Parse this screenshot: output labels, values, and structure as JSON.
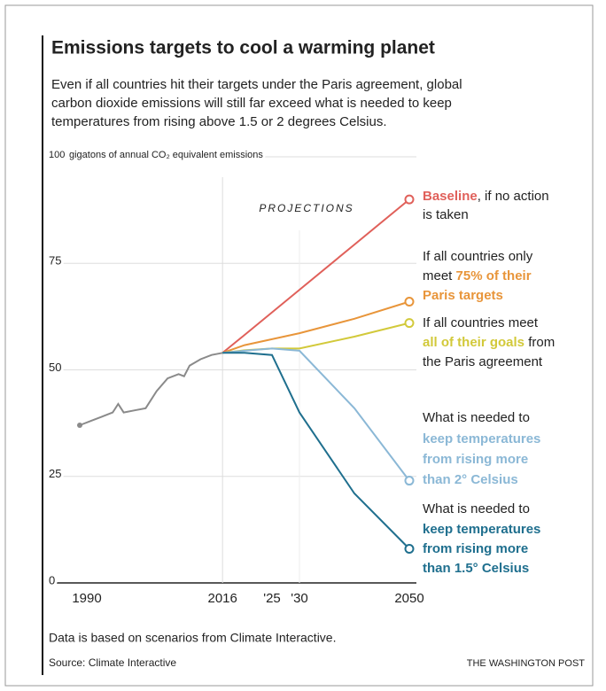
{
  "chart_data": {
    "type": "line",
    "title": "Emissions targets to cool a warming planet",
    "subtitle": [
      "Even if all countries hit their targets under the Paris agreement, global",
      "carbon dioxide emissions will still far exceed what is needed to keep",
      "temperatures from rising above 1.5 or 2 degrees Celsius."
    ],
    "y_axis_label": "gigatons of annual CO₂ equivalent emissions",
    "projection_label": "PROJECTIONS",
    "note": "Data is based on scenarios from Climate Interactive.",
    "source": "Source: Climate Interactive",
    "credit": "THE WASHINGTON POST",
    "x": [
      1990,
      1992,
      1994,
      1996,
      1997,
      1998,
      2000,
      2002,
      2004,
      2006,
      2008,
      2009,
      2010,
      2012,
      2014,
      2016,
      2020,
      2025,
      2030,
      2040,
      2050
    ],
    "xlim": [
      1990,
      2050
    ],
    "xticks": [
      1990,
      2016,
      {
        "value": 2025,
        "label": "'25"
      },
      {
        "value": 2030,
        "label": "'30"
      },
      2050
    ],
    "ylim": [
      0,
      100
    ],
    "yticks": [
      0,
      25,
      50,
      75,
      100
    ],
    "grid": true,
    "series": [
      {
        "color": "#8a8a8a",
        "values": [
          37,
          38,
          39,
          40,
          42,
          40,
          40.5,
          41,
          45,
          48,
          49,
          48.5,
          51,
          52.5,
          53.5,
          54,
          null,
          null,
          null,
          null,
          null
        ]
      },
      {
        "color": "#e0605a",
        "values": [
          null,
          null,
          null,
          null,
          null,
          null,
          null,
          null,
          null,
          null,
          null,
          null,
          null,
          null,
          null,
          54,
          58.2,
          63.5,
          68.8,
          79.4,
          90
        ],
        "label_lines": [
          [
            {
              "text": "Baseline",
              "highlight": true
            },
            {
              "text": ", if no action"
            }
          ],
          [
            {
              "text": "is taken"
            }
          ]
        ]
      },
      {
        "color": "#e8953a",
        "values": [
          null,
          null,
          null,
          null,
          null,
          null,
          null,
          null,
          null,
          null,
          null,
          null,
          null,
          null,
          null,
          54,
          55.8,
          57.2,
          58.6,
          62,
          66
        ],
        "label_lines": [
          [
            {
              "text": "If all countries only"
            }
          ],
          [
            {
              "text": "meet "
            },
            {
              "text": "75% of their",
              "highlight": true
            }
          ],
          [
            {
              "text": "Paris targets",
              "highlight": true
            }
          ]
        ]
      },
      {
        "color": "#d2c93a",
        "values": [
          null,
          null,
          null,
          null,
          null,
          null,
          null,
          null,
          null,
          null,
          null,
          null,
          null,
          null,
          null,
          54,
          54.6,
          55,
          55,
          57.8,
          61
        ],
        "label_lines": [
          [
            {
              "text": "If all countries meet"
            }
          ],
          [
            {
              "text": "all of their goals",
              "highlight": true
            },
            {
              "text": " from"
            }
          ],
          [
            {
              "text": "the Paris agreement"
            }
          ]
        ]
      },
      {
        "color": "#8bb8d6",
        "values": [
          null,
          null,
          null,
          null,
          null,
          null,
          null,
          null,
          null,
          null,
          null,
          null,
          null,
          null,
          null,
          54,
          54.5,
          55,
          54.5,
          41,
          24
        ],
        "label_lines": [
          [
            {
              "text": "What is needed to"
            }
          ],
          [
            {
              "text": "keep temperatures",
              "highlight": true
            }
          ],
          [
            {
              "text": "from rising more",
              "highlight": true
            }
          ],
          [
            {
              "text": "than 2° Celsius",
              "highlight": true
            }
          ]
        ]
      },
      {
        "color": "#1f6f8e",
        "values": [
          null,
          null,
          null,
          null,
          null,
          null,
          null,
          null,
          null,
          null,
          null,
          null,
          null,
          null,
          null,
          54,
          54,
          53.5,
          40,
          21,
          8
        ],
        "label_lines": [
          [
            {
              "text": "What is needed to"
            }
          ],
          [
            {
              "text": "keep temperatures",
              "highlight": true
            }
          ],
          [
            {
              "text": "from rising more",
              "highlight": true
            }
          ],
          [
            {
              "text": "than 1.5° Celsius",
              "highlight": true
            }
          ]
        ]
      }
    ]
  }
}
